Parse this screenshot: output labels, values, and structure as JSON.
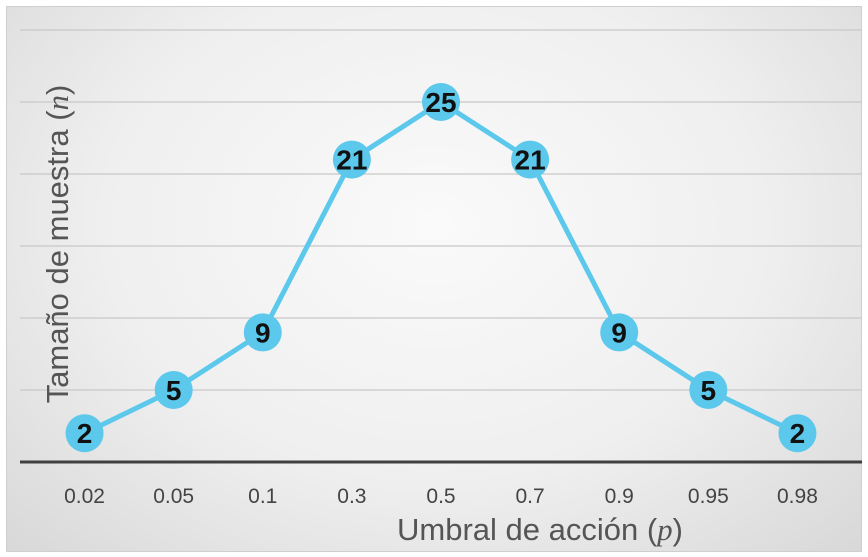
{
  "chart_data": {
    "type": "line",
    "categories": [
      "0.02",
      "0.05",
      "0.1",
      "0.3",
      "0.5",
      "0.7",
      "0.9",
      "0.95",
      "0.98"
    ],
    "series": [
      {
        "values": [
          2,
          5,
          9,
          21,
          25,
          21,
          9,
          5,
          2
        ]
      }
    ],
    "xlabel": {
      "text": "Umbral de acción ",
      "var": "p"
    },
    "ylabel": {
      "text": "Tamaño de muestra ",
      "var": "n"
    },
    "ylim": [
      0,
      30
    ],
    "grid": "horizontal",
    "data_labels": true,
    "colors": {
      "line": "#5bc8ec",
      "marker": "#5bc8ec",
      "grid": "#c8c8c8",
      "axis": "#404040"
    }
  }
}
